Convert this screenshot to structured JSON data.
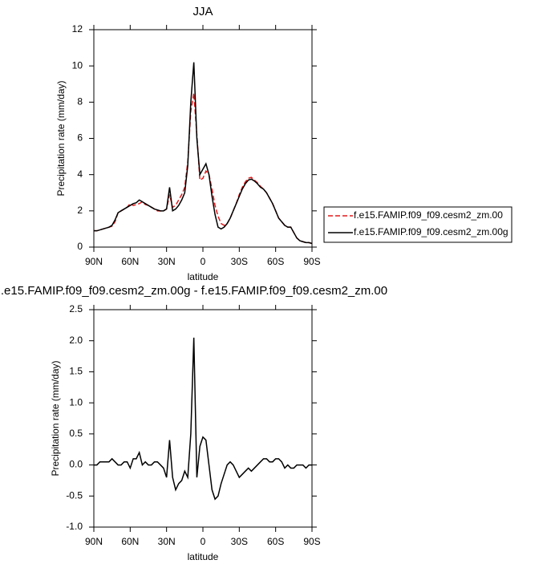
{
  "chart_data": [
    {
      "type": "line",
      "title": "JJA",
      "x_label": "latitude",
      "y_label": "Precipitation rate (mm/day)",
      "x": [
        90,
        87.5,
        85,
        82.5,
        80,
        77.5,
        75,
        72.5,
        70,
        67.5,
        65,
        62.5,
        60,
        57.5,
        55,
        52.5,
        50,
        47.5,
        45,
        42.5,
        40,
        37.5,
        35,
        32.5,
        30,
        27.5,
        25,
        22.5,
        20,
        17.5,
        15,
        12.5,
        10,
        7.5,
        5,
        2.5,
        0,
        -2.5,
        -5,
        -7.5,
        -10,
        -12.5,
        -15,
        -17.5,
        -20,
        -22.5,
        -25,
        -27.5,
        -30,
        -32.5,
        -35,
        -37.5,
        -40,
        -42.5,
        -45,
        -47.5,
        -50,
        -52.5,
        -55,
        -57.5,
        -60,
        -62.5,
        -65,
        -67.5,
        -70,
        -72.5,
        -75,
        -77.5,
        -80,
        -82.5,
        -85,
        -87.5,
        -90
      ],
      "xlim": [
        90,
        -90
      ],
      "xticks": [
        {
          "value": 90,
          "label": "90N"
        },
        {
          "value": 60,
          "label": "60N"
        },
        {
          "value": 30,
          "label": "30N"
        },
        0,
        {
          "value": -30,
          "label": "30S"
        },
        {
          "value": -60,
          "label": "60S"
        },
        {
          "value": -90,
          "label": "90S"
        }
      ],
      "ylim": [
        0,
        12
      ],
      "yticks": [
        0,
        2,
        4,
        6,
        8,
        10,
        12
      ],
      "legend_position": "outside-right",
      "series": [
        {
          "name": "f.e15.FAMIP.f09_f09.cesm2_zm.00",
          "color": "#e41a1c",
          "line_style": "dashed",
          "values": [
            0.9,
            0.9,
            0.95,
            1.0,
            1.05,
            1.1,
            1.15,
            1.4,
            1.9,
            2.0,
            2.1,
            2.2,
            2.4,
            2.3,
            2.35,
            2.4,
            2.5,
            2.35,
            2.3,
            2.2,
            2.1,
            2.0,
            2.0,
            2.0,
            2.1,
            2.9,
            2.2,
            2.3,
            2.6,
            2.9,
            3.3,
            4.7,
            7.5,
            8.5,
            6.2,
            3.7,
            3.8,
            4.2,
            4.0,
            3.2,
            2.3,
            1.7,
            1.3,
            1.2,
            1.3,
            1.6,
            2.0,
            2.4,
            2.9,
            3.3,
            3.6,
            3.8,
            3.85,
            3.7,
            3.55,
            3.35,
            3.2,
            3.0,
            2.7,
            2.4,
            2.0,
            1.6,
            1.4,
            1.2,
            1.1,
            1.1,
            0.8,
            0.5,
            0.35,
            0.3,
            0.25,
            0.25,
            0.2
          ]
        },
        {
          "name": "f.e15.FAMIP.f09_f09.cesm2_zm.00g",
          "color": "#000000",
          "line_style": "solid",
          "values": [
            0.9,
            0.9,
            0.95,
            1.0,
            1.05,
            1.1,
            1.2,
            1.5,
            1.9,
            2.0,
            2.1,
            2.2,
            2.3,
            2.4,
            2.45,
            2.6,
            2.5,
            2.4,
            2.3,
            2.2,
            2.1,
            2.05,
            2.0,
            2.0,
            2.1,
            3.3,
            2.0,
            2.1,
            2.3,
            2.6,
            3.0,
            4.5,
            8.0,
            10.2,
            6.0,
            4.0,
            4.3,
            4.6,
            4.0,
            2.8,
            1.8,
            1.1,
            1.0,
            1.1,
            1.3,
            1.6,
            2.0,
            2.4,
            2.8,
            3.2,
            3.5,
            3.7,
            3.75,
            3.65,
            3.5,
            3.3,
            3.2,
            3.0,
            2.7,
            2.4,
            2.0,
            1.6,
            1.4,
            1.2,
            1.1,
            1.1,
            0.8,
            0.5,
            0.35,
            0.3,
            0.25,
            0.25,
            0.2
          ]
        }
      ]
    },
    {
      "type": "line",
      "title": ".e15.FAMIP.f09_f09.cesm2_zm.00g - f.e15.FAMIP.f09_f09.cesm2_zm.00",
      "x_label": "latitude",
      "y_label": "Precipitation rate (mm/day)",
      "x": [
        90,
        87.5,
        85,
        82.5,
        80,
        77.5,
        75,
        72.5,
        70,
        67.5,
        65,
        62.5,
        60,
        57.5,
        55,
        52.5,
        50,
        47.5,
        45,
        42.5,
        40,
        37.5,
        35,
        32.5,
        30,
        27.5,
        25,
        22.5,
        20,
        17.5,
        15,
        12.5,
        10,
        7.5,
        5,
        2.5,
        0,
        -2.5,
        -5,
        -7.5,
        -10,
        -12.5,
        -15,
        -17.5,
        -20,
        -22.5,
        -25,
        -27.5,
        -30,
        -32.5,
        -35,
        -37.5,
        -40,
        -42.5,
        -45,
        -47.5,
        -50,
        -52.5,
        -55,
        -57.5,
        -60,
        -62.5,
        -65,
        -67.5,
        -70,
        -72.5,
        -75,
        -77.5,
        -80,
        -82.5,
        -85,
        -87.5,
        -90
      ],
      "xlim": [
        90,
        -90
      ],
      "xticks": [
        {
          "value": 90,
          "label": "90N"
        },
        {
          "value": 60,
          "label": "60N"
        },
        {
          "value": 30,
          "label": "30N"
        },
        0,
        {
          "value": -30,
          "label": "30S"
        },
        {
          "value": -60,
          "label": "60S"
        },
        {
          "value": -90,
          "label": "90S"
        }
      ],
      "ylim": [
        -1,
        2.5
      ],
      "yticks": [
        {
          "value": -1,
          "label": "-1.0"
        },
        -0.5,
        {
          "value": 0,
          "label": "0.0"
        },
        0.5,
        {
          "value": 1,
          "label": "1.0"
        },
        1.5,
        {
          "value": 2,
          "label": "2.0"
        },
        2.5
      ],
      "series": [
        {
          "color": "#000000",
          "line_style": "solid",
          "values": [
            0.0,
            0.0,
            0.05,
            0.05,
            0.05,
            0.05,
            0.1,
            0.05,
            0.0,
            0.0,
            0.05,
            0.05,
            -0.05,
            0.1,
            0.1,
            0.2,
            0.0,
            0.05,
            0.0,
            0.0,
            0.05,
            0.05,
            0.0,
            -0.05,
            -0.2,
            0.4,
            -0.2,
            -0.4,
            -0.3,
            -0.25,
            -0.1,
            -0.2,
            0.5,
            2.05,
            -0.2,
            0.3,
            0.45,
            0.4,
            0.0,
            -0.4,
            -0.55,
            -0.5,
            -0.3,
            -0.15,
            0.0,
            0.05,
            0.0,
            -0.1,
            -0.2,
            -0.15,
            -0.1,
            -0.05,
            -0.1,
            -0.05,
            0.0,
            0.05,
            0.1,
            0.1,
            0.05,
            0.05,
            0.1,
            0.1,
            0.05,
            -0.05,
            0.0,
            -0.05,
            -0.05,
            0.0,
            0.0,
            0.0,
            -0.05,
            0.0,
            0.0
          ]
        }
      ]
    }
  ]
}
